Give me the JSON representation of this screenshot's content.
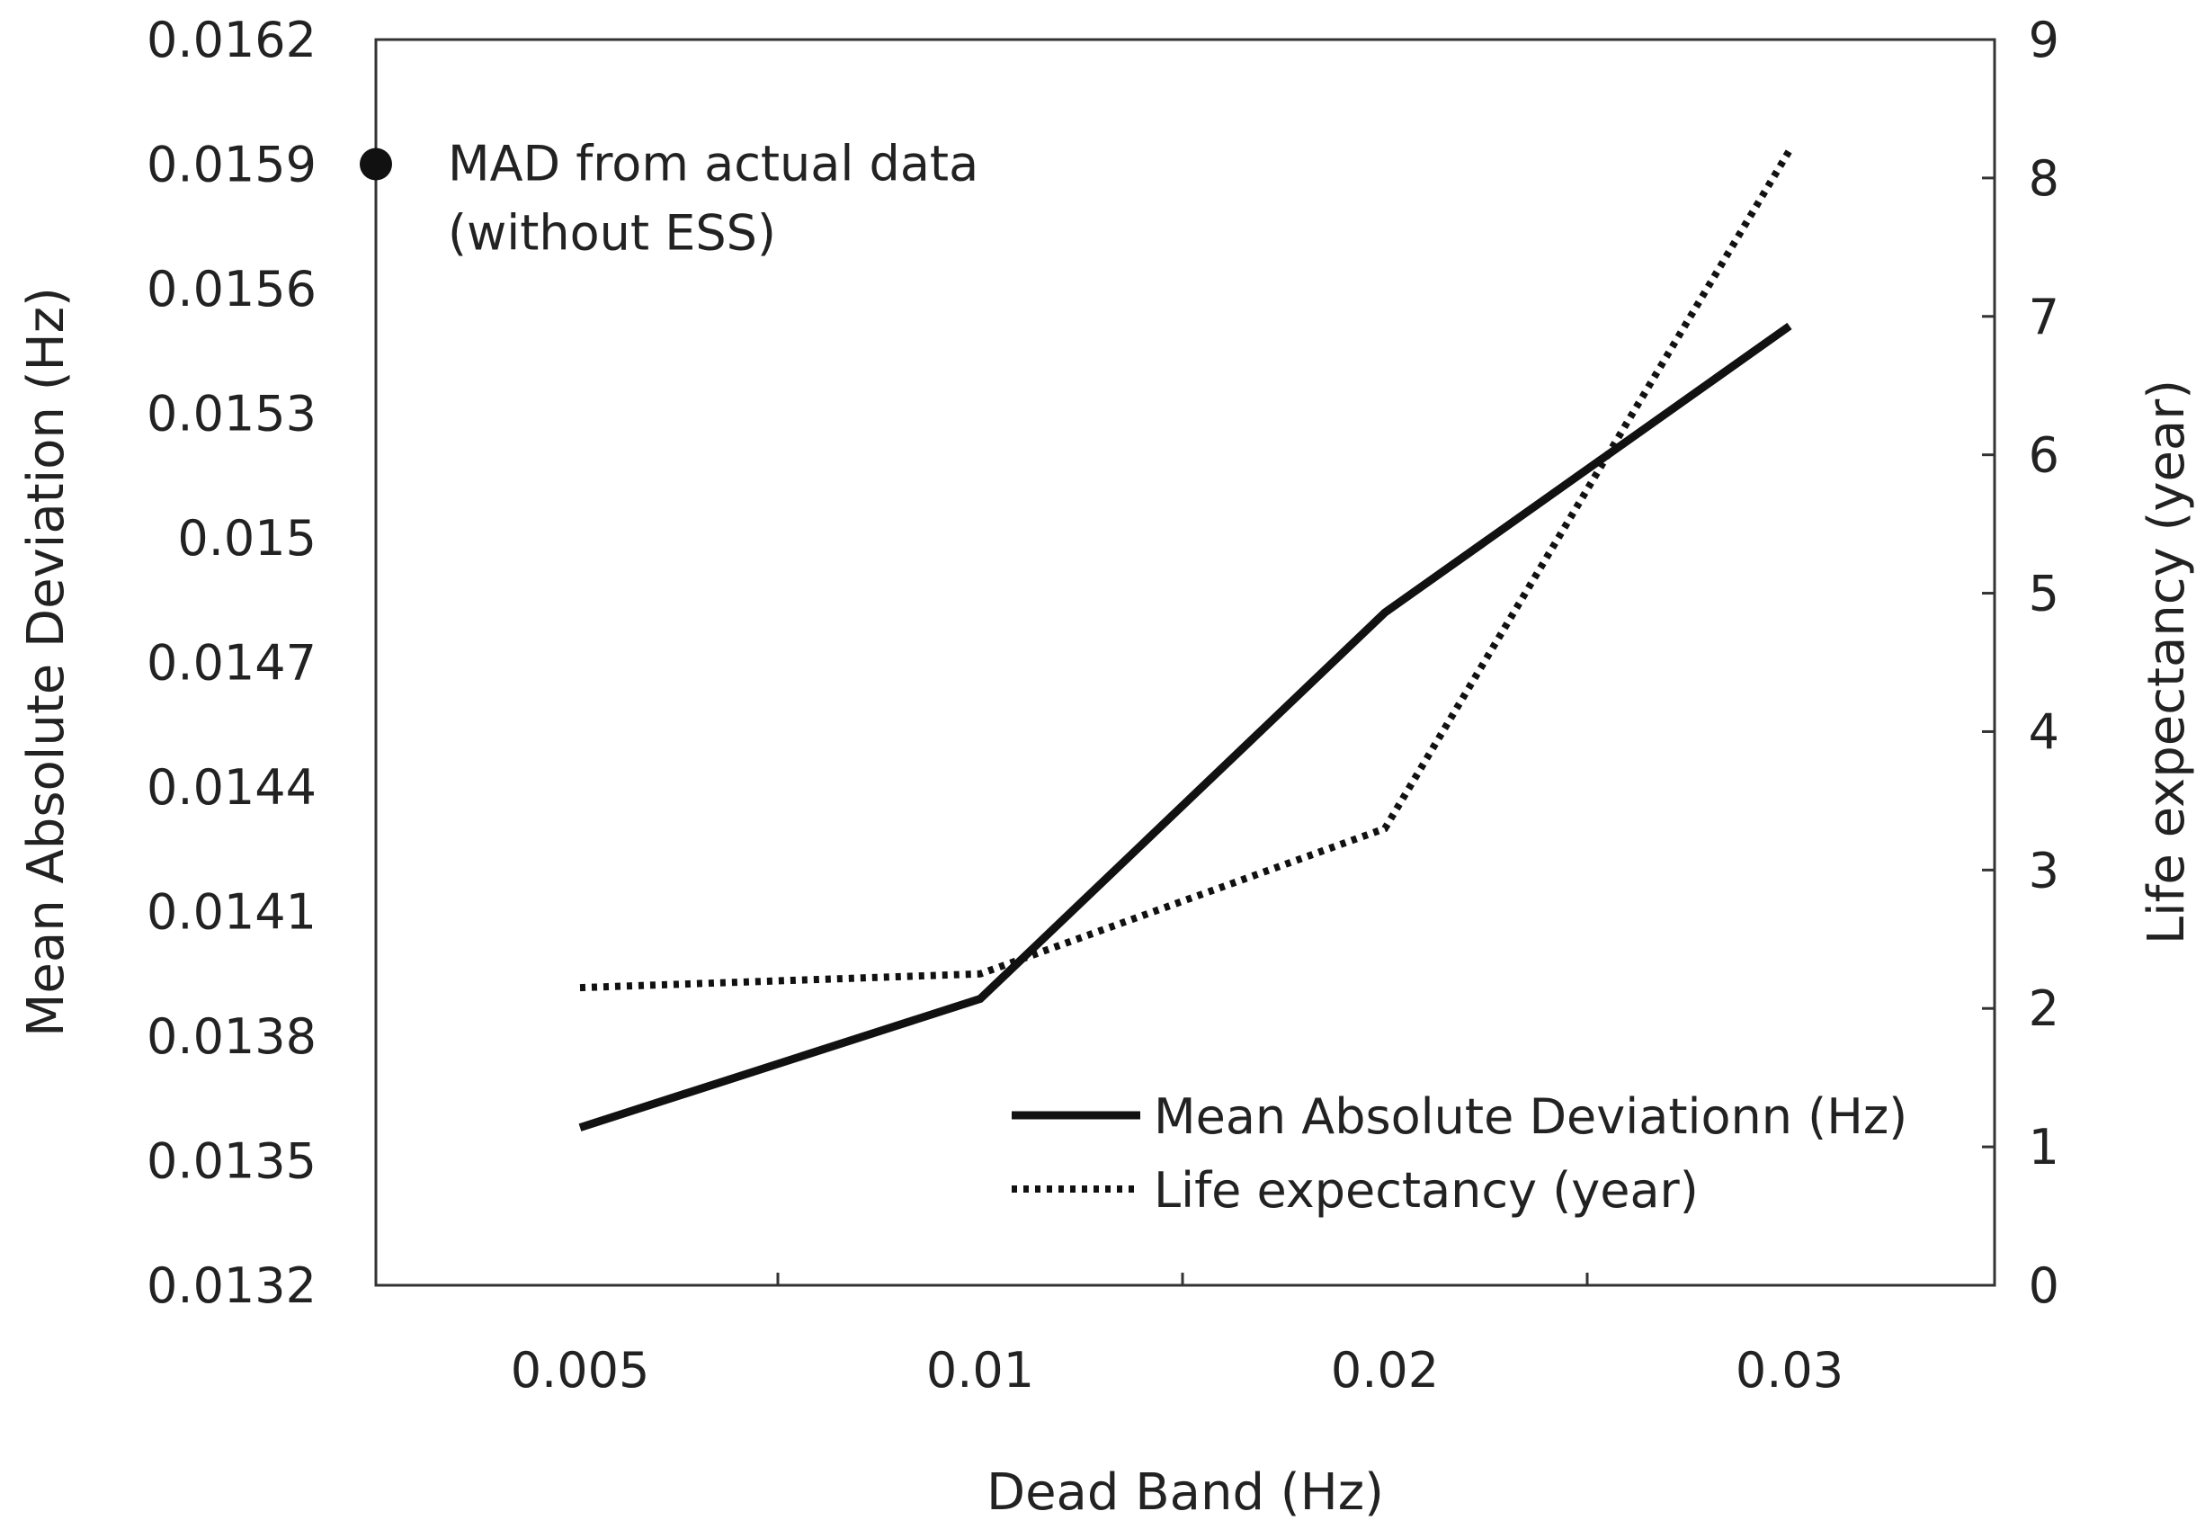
{
  "chart_data": {
    "type": "line",
    "title": "",
    "xlabel": "Dead Band (Hz)",
    "ylabel": "Mean Absolute Deviation (Hz)",
    "ylabel_right": "Life expectancy (year)",
    "categories": [
      "0.005",
      "0.01",
      "0.02",
      "0.03"
    ],
    "ylim": [
      0.0132,
      0.0162
    ],
    "ylim_right": [
      0,
      9
    ],
    "yticks": [
      "0.0132",
      "0.0135",
      "0.0138",
      "0.0141",
      "0.0144",
      "0.0147",
      "0.015",
      "0.0153",
      "0.0156",
      "0.0159",
      "0.0162"
    ],
    "yticks_right": [
      "0",
      "1",
      "2",
      "3",
      "4",
      "5",
      "6",
      "7",
      "8",
      "9"
    ],
    "series": [
      {
        "name": "Mean Absolute Deviationn (Hz)",
        "axis": "left",
        "style": "solid",
        "values": [
          0.01358,
          0.01389,
          0.01482,
          0.01551
        ]
      },
      {
        "name": "Life expectancy (year)",
        "axis": "right",
        "style": "dotted",
        "values": [
          2.15,
          2.25,
          3.3,
          8.2
        ]
      }
    ],
    "annotation": {
      "marker_value": 0.0159,
      "lines": [
        "MAD from actual data",
        "(without ESS)"
      ]
    },
    "legend_position": "bottom-right"
  },
  "colors": {
    "line": "#111111",
    "text": "#222222",
    "axis": "#333333"
  }
}
